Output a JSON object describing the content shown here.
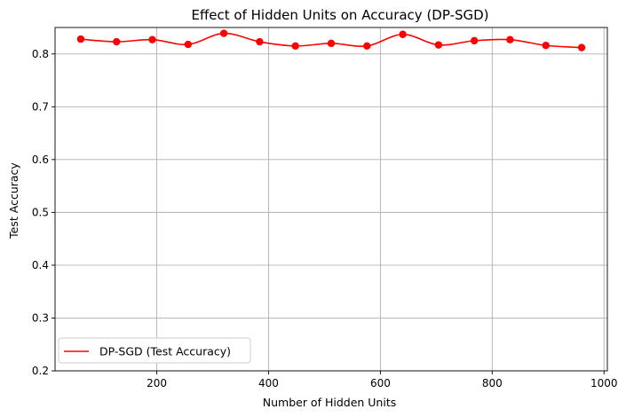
{
  "chart_data": {
    "type": "line",
    "title": "Effect of Hidden Units on Accuracy (DP-SGD)",
    "xlabel": "Number of Hidden Units",
    "ylabel": "Test Accuracy",
    "xlim": [
      18,
      1006
    ],
    "ylim": [
      0.2,
      0.85
    ],
    "xticks": [
      200,
      400,
      600,
      800,
      1000
    ],
    "xtick_labels": [
      "200",
      "400",
      "600",
      "800",
      "1000"
    ],
    "yticks": [
      0.2,
      0.3,
      0.4,
      0.5,
      0.6,
      0.7,
      0.8
    ],
    "ytick_labels": [
      "0.2",
      "0.3",
      "0.4",
      "0.5",
      "0.6",
      "0.7",
      "0.8"
    ],
    "grid": true,
    "legend_position": "lower-left",
    "series": [
      {
        "name": "DP-SGD (Test Accuracy)",
        "color": "#ff0000",
        "marker": "circle",
        "smooth": true,
        "x": [
          64,
          128,
          192,
          256,
          320,
          384,
          448,
          512,
          576,
          640,
          704,
          768,
          832,
          896,
          960
        ],
        "y": [
          0.828,
          0.823,
          0.827,
          0.818,
          0.839,
          0.823,
          0.815,
          0.82,
          0.815,
          0.837,
          0.817,
          0.825,
          0.827,
          0.816,
          0.812
        ]
      }
    ]
  }
}
